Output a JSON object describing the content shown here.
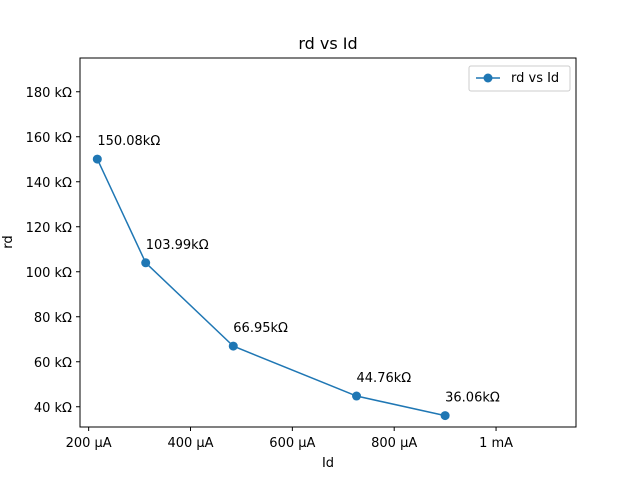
{
  "chart_data": {
    "type": "line",
    "title": "rd vs Id",
    "xlabel": "Id",
    "ylabel": "rd",
    "x": [
      217,
      312,
      484,
      726,
      900
    ],
    "series": [
      {
        "name": "rd vs Id",
        "values": [
          150.08,
          103.99,
          66.95,
          44.76,
          36.06
        ],
        "labels": [
          "150.08kΩ",
          "103.99kΩ",
          "66.95kΩ",
          "44.76kΩ",
          "36.06kΩ"
        ],
        "color": "#1f77b4"
      }
    ],
    "xlim": [
      183,
      1157
    ],
    "ylim": [
      31,
      195
    ],
    "xticks": [
      {
        "value": 200,
        "label": "200 µA"
      },
      {
        "value": 400,
        "label": "400 µA"
      },
      {
        "value": 600,
        "label": "600 µA"
      },
      {
        "value": 800,
        "label": "800 µA"
      },
      {
        "value": 1000,
        "label": "1 mA"
      }
    ],
    "yticks": [
      {
        "value": 40,
        "label": "40 kΩ"
      },
      {
        "value": 60,
        "label": "60 kΩ"
      },
      {
        "value": 80,
        "label": "80 kΩ"
      },
      {
        "value": 100,
        "label": "100 kΩ"
      },
      {
        "value": 120,
        "label": "120 kΩ"
      },
      {
        "value": 140,
        "label": "140 kΩ"
      },
      {
        "value": 160,
        "label": "160 kΩ"
      },
      {
        "value": 180,
        "label": "180 kΩ"
      }
    ],
    "grid": false,
    "legend": "top-right"
  }
}
